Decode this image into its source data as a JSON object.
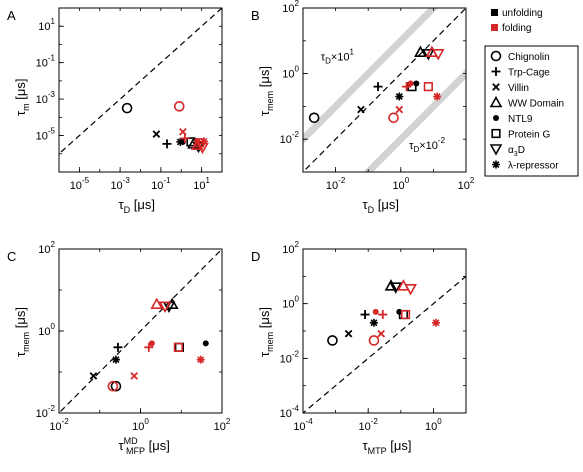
{
  "colors": {
    "unfolding": "#000000",
    "folding": "#d62728",
    "band": "#d3d3d3"
  },
  "legend": {
    "states": [
      {
        "label": "unfolding",
        "color": "#000000"
      },
      {
        "label": "folding",
        "color": "#d62728"
      }
    ],
    "proteins": [
      {
        "label": "Chignolin",
        "marker": "circle-open"
      },
      {
        "label": "Trp-Cage",
        "marker": "plus"
      },
      {
        "label": "Villin",
        "marker": "x"
      },
      {
        "label": "WW Domain",
        "marker": "triangle-up-open"
      },
      {
        "label": "NTL9",
        "marker": "circle-filled"
      },
      {
        "label": "Protein G",
        "marker": "square-open"
      },
      {
        "label": "α3D",
        "marker": "triangle-down-open"
      },
      {
        "label": "λ-repressor",
        "marker": "asterisk"
      }
    ]
  },
  "chart_data": [
    {
      "panel": "A",
      "type": "scatter",
      "log_x": true,
      "log_y": true,
      "xlabel": "τD [μs]",
      "xlabel_main": "τ",
      "xlabel_sub": "D",
      "xlabel_unit": " [μs]",
      "ylabel": "τm [μs]",
      "ylabel_main": "τ",
      "ylabel_sub": "m",
      "ylabel_unit": " [μs]",
      "xlim": [
        1e-06,
        100
      ],
      "ylim": [
        1e-07,
        100
      ],
      "xticks": [
        {
          "v": 1e-05,
          "base": "10",
          "exp": "-5"
        },
        {
          "v": 0.001,
          "base": "10",
          "exp": "-3"
        },
        {
          "v": 0.1,
          "base": "10",
          "exp": "-1"
        },
        {
          "v": 10,
          "base": "10",
          "exp": "1"
        }
      ],
      "yticks": [
        {
          "v": 1e-05,
          "base": "10",
          "exp": "-5"
        },
        {
          "v": 0.001,
          "base": "10",
          "exp": "-3"
        },
        {
          "v": 0.1,
          "base": "10",
          "exp": "-1"
        },
        {
          "v": 10,
          "base": "10",
          "exp": "1"
        }
      ],
      "diagonal": true,
      "bands": [],
      "points": [
        {
          "protein": "Chignolin",
          "state": "unfolding",
          "x": 0.0022,
          "y": 0.00032
        },
        {
          "protein": "Trp-Cage",
          "state": "unfolding",
          "x": 0.2,
          "y": 3.5e-06
        },
        {
          "protein": "Villin",
          "state": "unfolding",
          "x": 0.06,
          "y": 1.2e-05
        },
        {
          "protein": "WW Domain",
          "state": "unfolding",
          "x": 4,
          "y": 3.5e-06
        },
        {
          "protein": "NTL9",
          "state": "unfolding",
          "x": 1.2,
          "y": 4.5e-06
        },
        {
          "protein": "Protein G",
          "state": "unfolding",
          "x": 3,
          "y": 4.5e-06
        },
        {
          "protein": "α3D",
          "state": "unfolding",
          "x": 7,
          "y": 2.5e-06
        },
        {
          "protein": "λ-repressor",
          "state": "unfolding",
          "x": 0.9,
          "y": 4.5e-06
        },
        {
          "protein": "Chignolin",
          "state": "folding",
          "x": 0.8,
          "y": 0.0004
        },
        {
          "protein": "Trp-Cage",
          "state": "folding",
          "x": 1.5,
          "y": 7e-06
        },
        {
          "protein": "Villin",
          "state": "folding",
          "x": 1.2,
          "y": 1.6e-05
        },
        {
          "protein": "WW Domain",
          "state": "folding",
          "x": 6,
          "y": 3e-06
        },
        {
          "protein": "NTL9",
          "state": "folding",
          "x": 6,
          "y": 5e-06
        },
        {
          "protein": "Protein G",
          "state": "folding",
          "x": 8,
          "y": 4e-06
        },
        {
          "protein": "α3D",
          "state": "folding",
          "x": 11,
          "y": 2.2e-06
        },
        {
          "protein": "λ-repressor",
          "state": "folding",
          "x": 13,
          "y": 4.8e-06
        }
      ]
    },
    {
      "panel": "B",
      "type": "scatter",
      "log_x": true,
      "log_y": true,
      "xlabel": "τD [μs]",
      "xlabel_main": "τ",
      "xlabel_sub": "D",
      "xlabel_unit": " [μs]",
      "ylabel": "τmem [μs]",
      "ylabel_main": "τ",
      "ylabel_sub": "mem",
      "ylabel_unit": " [μs]",
      "xlim": [
        0.001,
        100
      ],
      "ylim": [
        0.001,
        100
      ],
      "xticks": [
        {
          "v": 0.01,
          "base": "10",
          "exp": "-2"
        },
        {
          "v": 1,
          "base": "10",
          "exp": "0"
        },
        {
          "v": 100,
          "base": "10",
          "exp": "2"
        }
      ],
      "yticks": [
        {
          "v": 0.01,
          "base": "10",
          "exp": "-2"
        },
        {
          "v": 1,
          "base": "10",
          "exp": "0"
        },
        {
          "v": 100,
          "base": "10",
          "exp": "2"
        }
      ],
      "diagonal": true,
      "bands": [
        10,
        0.01
      ],
      "annotations": [
        {
          "main": "τ",
          "sub": "D",
          "rest": "×10",
          "sup": "1",
          "x": 0.0035,
          "y": 2.5
        },
        {
          "main": "τ",
          "sub": "D",
          "rest": "×10",
          "sup": "-2",
          "x": 1.8,
          "y": 0.005
        }
      ],
      "points": [
        {
          "protein": "Chignolin",
          "state": "unfolding",
          "x": 0.0022,
          "y": 0.045
        },
        {
          "protein": "Trp-Cage",
          "state": "unfolding",
          "x": 0.2,
          "y": 0.4
        },
        {
          "protein": "Villin",
          "state": "unfolding",
          "x": 0.06,
          "y": 0.08
        },
        {
          "protein": "WW Domain",
          "state": "unfolding",
          "x": 4,
          "y": 4.5
        },
        {
          "protein": "NTL9",
          "state": "unfolding",
          "x": 3,
          "y": 0.5
        },
        {
          "protein": "Protein G",
          "state": "unfolding",
          "x": 2.2,
          "y": 0.4
        },
        {
          "protein": "α3D",
          "state": "unfolding",
          "x": 7,
          "y": 4
        },
        {
          "protein": "λ-repressor",
          "state": "unfolding",
          "x": 0.9,
          "y": 0.2
        },
        {
          "protein": "Chignolin",
          "state": "folding",
          "x": 0.6,
          "y": 0.045
        },
        {
          "protein": "Trp-Cage",
          "state": "folding",
          "x": 1.5,
          "y": 0.4
        },
        {
          "protein": "Villin",
          "state": "folding",
          "x": 0.9,
          "y": 0.08
        },
        {
          "protein": "WW Domain",
          "state": "folding",
          "x": 9,
          "y": 4.5
        },
        {
          "protein": "NTL9",
          "state": "folding",
          "x": 2,
          "y": 0.5
        },
        {
          "protein": "Protein G",
          "state": "folding",
          "x": 7,
          "y": 0.4
        },
        {
          "protein": "α3D",
          "state": "folding",
          "x": 14,
          "y": 4
        },
        {
          "protein": "λ-repressor",
          "state": "folding",
          "x": 13,
          "y": 0.2
        }
      ]
    },
    {
      "panel": "C",
      "type": "scatter",
      "log_x": true,
      "log_y": true,
      "xlabel": "τMFP^MD [μs]",
      "xlabel_main": "τ",
      "xlabel_sub": "MFP",
      "xlabel_sup": "MD",
      "xlabel_unit": " [μs]",
      "ylabel": "τmem [μs]",
      "ylabel_main": "τ",
      "ylabel_sub": "mem",
      "ylabel_unit": " [μs]",
      "xlim": [
        0.01,
        100
      ],
      "ylim": [
        0.01,
        100
      ],
      "xticks": [
        {
          "v": 0.01,
          "base": "10",
          "exp": "-2"
        },
        {
          "v": 1,
          "base": "10",
          "exp": "0"
        },
        {
          "v": 100,
          "base": "10",
          "exp": "2"
        }
      ],
      "yticks": [
        {
          "v": 0.01,
          "base": "10",
          "exp": "-2"
        },
        {
          "v": 1,
          "base": "10",
          "exp": "0"
        },
        {
          "v": 100,
          "base": "10",
          "exp": "2"
        }
      ],
      "diagonal": true,
      "bands": [],
      "points": [
        {
          "protein": "Chignolin",
          "state": "unfolding",
          "x": 0.25,
          "y": 0.045
        },
        {
          "protein": "Trp-Cage",
          "state": "unfolding",
          "x": 0.28,
          "y": 0.4
        },
        {
          "protein": "Villin",
          "state": "unfolding",
          "x": 0.07,
          "y": 0.08
        },
        {
          "protein": "WW Domain",
          "state": "unfolding",
          "x": 6,
          "y": 4.5
        },
        {
          "protein": "NTL9",
          "state": "unfolding",
          "x": 40,
          "y": 0.5
        },
        {
          "protein": "Protein G",
          "state": "unfolding",
          "x": 9,
          "y": 0.4
        },
        {
          "protein": "α3D",
          "state": "unfolding",
          "x": 5,
          "y": 4
        },
        {
          "protein": "λ-repressor",
          "state": "unfolding",
          "x": 0.25,
          "y": 0.2
        },
        {
          "protein": "Chignolin",
          "state": "folding",
          "x": 0.21,
          "y": 0.045
        },
        {
          "protein": "Trp-Cage",
          "state": "folding",
          "x": 1.6,
          "y": 0.4
        },
        {
          "protein": "Villin",
          "state": "folding",
          "x": 0.7,
          "y": 0.08
        },
        {
          "protein": "WW Domain",
          "state": "folding",
          "x": 2.5,
          "y": 4.5
        },
        {
          "protein": "NTL9",
          "state": "folding",
          "x": 1.9,
          "y": 0.5
        },
        {
          "protein": "Protein G",
          "state": "folding",
          "x": 8.5,
          "y": 0.4
        },
        {
          "protein": "α3D",
          "state": "folding",
          "x": 4,
          "y": 4
        },
        {
          "protein": "λ-repressor",
          "state": "folding",
          "x": 30,
          "y": 0.2
        }
      ]
    },
    {
      "panel": "D",
      "type": "scatter",
      "log_x": true,
      "log_y": true,
      "xlabel": "τMTP [μs]",
      "xlabel_main": "τ",
      "xlabel_sub": "MTP",
      "xlabel_unit": " [μs]",
      "ylabel": "τmem [μs]",
      "ylabel_main": "τ",
      "ylabel_sub": "mem",
      "ylabel_unit": " [μs]",
      "xlim": [
        0.0001,
        10
      ],
      "ylim": [
        0.0001,
        100
      ],
      "xticks": [
        {
          "v": 0.0001,
          "base": "10",
          "exp": "-4"
        },
        {
          "v": 0.01,
          "base": "10",
          "exp": "-2"
        },
        {
          "v": 1,
          "base": "10",
          "exp": "0"
        }
      ],
      "yticks": [
        {
          "v": 0.0001,
          "base": "10",
          "exp": "-4"
        },
        {
          "v": 0.01,
          "base": "10",
          "exp": "-2"
        },
        {
          "v": 1,
          "base": "10",
          "exp": "0"
        },
        {
          "v": 100,
          "base": "10",
          "exp": "2"
        }
      ],
      "diagonal": true,
      "bands": [],
      "points": [
        {
          "protein": "Chignolin",
          "state": "unfolding",
          "x": 0.0008,
          "y": 0.045
        },
        {
          "protein": "Trp-Cage",
          "state": "unfolding",
          "x": 0.008,
          "y": 0.4
        },
        {
          "protein": "Villin",
          "state": "unfolding",
          "x": 0.0025,
          "y": 0.08
        },
        {
          "protein": "WW Domain",
          "state": "unfolding",
          "x": 0.05,
          "y": 4.5
        },
        {
          "protein": "NTL9",
          "state": "unfolding",
          "x": 0.09,
          "y": 0.5
        },
        {
          "protein": "Protein G",
          "state": "unfolding",
          "x": 0.12,
          "y": 0.4
        },
        {
          "protein": "α3D",
          "state": "unfolding",
          "x": 0.07,
          "y": 4
        },
        {
          "protein": "λ-repressor",
          "state": "unfolding",
          "x": 0.015,
          "y": 0.2
        },
        {
          "protein": "Chignolin",
          "state": "folding",
          "x": 0.015,
          "y": 0.045
        },
        {
          "protein": "Trp-Cage",
          "state": "folding",
          "x": 0.028,
          "y": 0.4
        },
        {
          "protein": "Villin",
          "state": "folding",
          "x": 0.025,
          "y": 0.08
        },
        {
          "protein": "WW Domain",
          "state": "folding",
          "x": 0.12,
          "y": 4.5
        },
        {
          "protein": "NTL9",
          "state": "folding",
          "x": 0.017,
          "y": 0.5
        },
        {
          "protein": "Protein G",
          "state": "folding",
          "x": 0.14,
          "y": 0.4
        },
        {
          "protein": "α3D",
          "state": "folding",
          "x": 0.2,
          "y": 3.5
        },
        {
          "protein": "λ-repressor",
          "state": "folding",
          "x": 1.2,
          "y": 0.2
        }
      ]
    }
  ]
}
